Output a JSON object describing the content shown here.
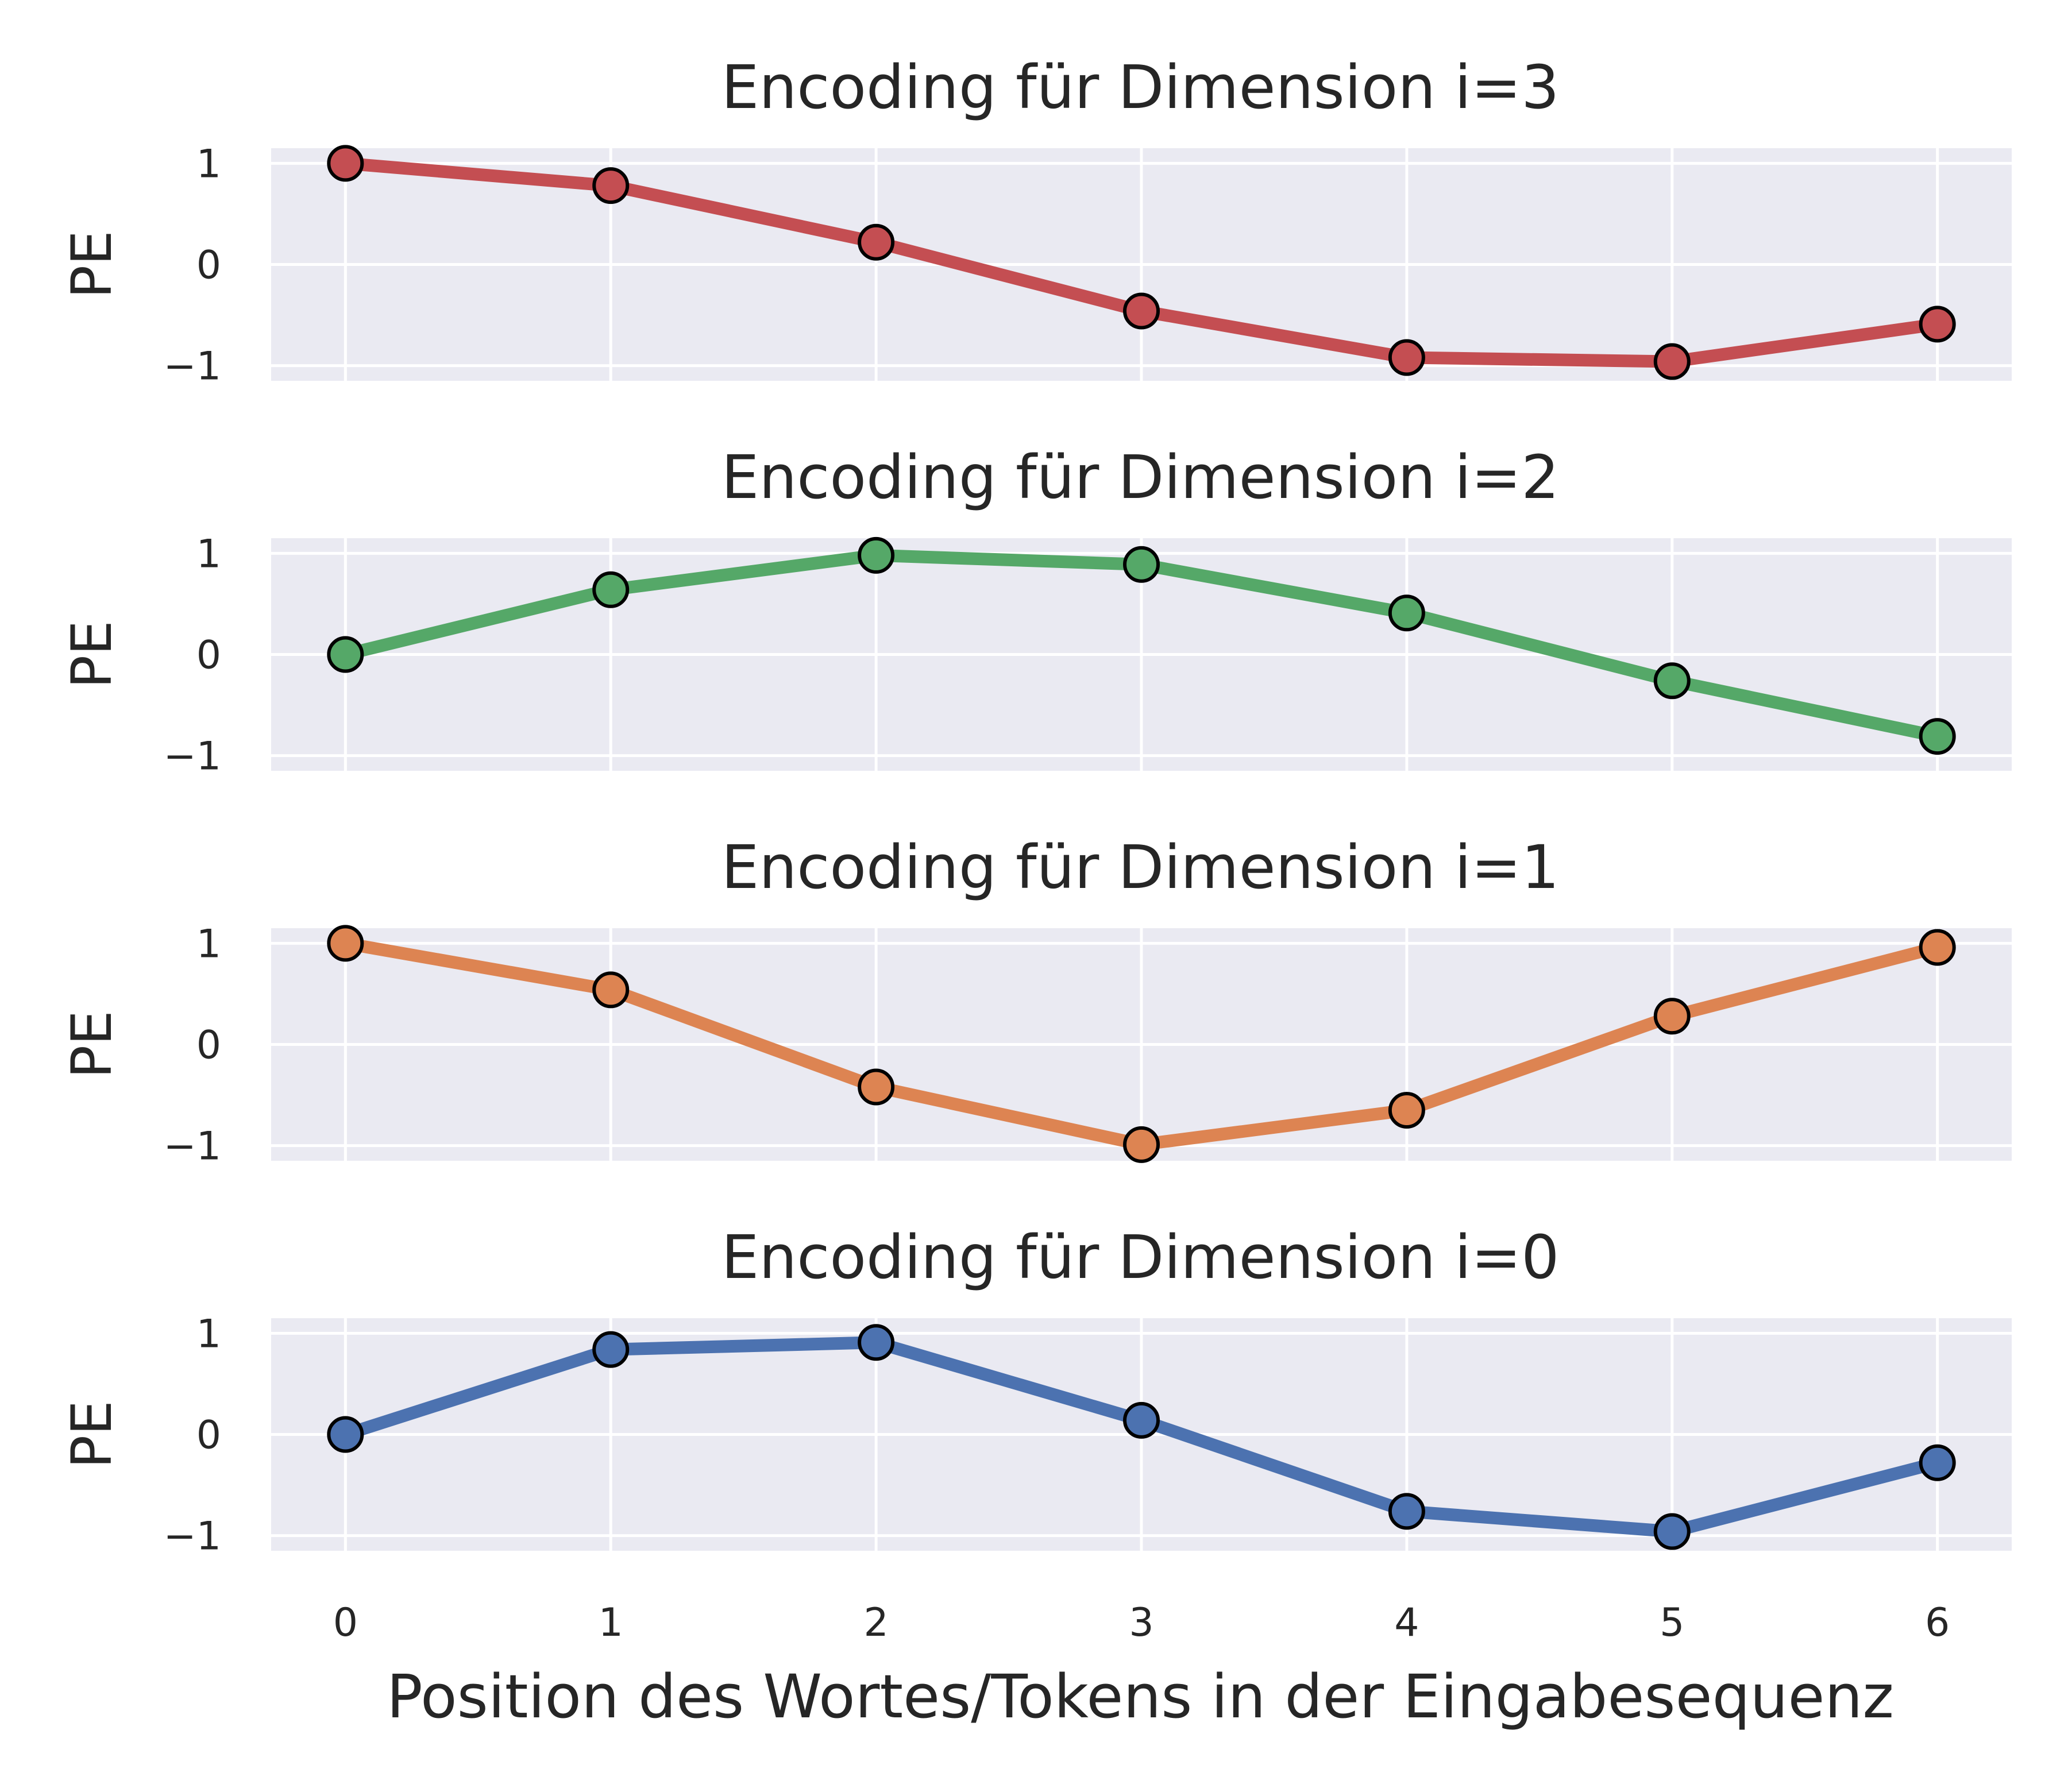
{
  "figure": {
    "xlabel": "Position des Wortes/Tokens in der Eingabesequenz"
  },
  "chart_data": [
    {
      "type": "line",
      "title": "Encoding für Dimension i=3",
      "xlabel": "",
      "ylabel": "PE",
      "x": [
        0,
        1,
        2,
        3,
        4,
        5,
        6
      ],
      "y": [
        1.0,
        0.78,
        0.22,
        -0.46,
        -0.92,
        -0.96,
        -0.59
      ],
      "color": "#c44e52",
      "xlim": [
        -0.28,
        6.28
      ],
      "ylim": [
        -1.15,
        1.15
      ],
      "yticks": [
        -1,
        0,
        1
      ],
      "ytick_labels": [
        "−1",
        "0",
        "1"
      ],
      "xticks": [
        0,
        1,
        2,
        3,
        4,
        5,
        6
      ],
      "xtick_labels": [],
      "grid": true
    },
    {
      "type": "line",
      "title": "Encoding für Dimension i=2",
      "xlabel": "",
      "ylabel": "PE",
      "x": [
        0,
        1,
        2,
        3,
        4,
        5,
        6
      ],
      "y": [
        0.0,
        0.64,
        0.98,
        0.89,
        0.41,
        -0.26,
        -0.81
      ],
      "color": "#55a868",
      "xlim": [
        -0.28,
        6.28
      ],
      "ylim": [
        -1.15,
        1.15
      ],
      "yticks": [
        -1,
        0,
        1
      ],
      "ytick_labels": [
        "−1",
        "0",
        "1"
      ],
      "xticks": [
        0,
        1,
        2,
        3,
        4,
        5,
        6
      ],
      "xtick_labels": [],
      "grid": true
    },
    {
      "type": "line",
      "title": "Encoding für Dimension i=1",
      "xlabel": "",
      "ylabel": "PE",
      "x": [
        0,
        1,
        2,
        3,
        4,
        5,
        6
      ],
      "y": [
        1.0,
        0.54,
        -0.42,
        -0.99,
        -0.65,
        0.28,
        0.96
      ],
      "color": "#dd8452",
      "xlim": [
        -0.28,
        6.28
      ],
      "ylim": [
        -1.15,
        1.15
      ],
      "yticks": [
        -1,
        0,
        1
      ],
      "ytick_labels": [
        "−1",
        "0",
        "1"
      ],
      "xticks": [
        0,
        1,
        2,
        3,
        4,
        5,
        6
      ],
      "xtick_labels": [],
      "grid": true
    },
    {
      "type": "line",
      "title": "Encoding für Dimension i=0",
      "xlabel": "Position des Wortes/Tokens in der Eingabesequenz",
      "ylabel": "PE",
      "x": [
        0,
        1,
        2,
        3,
        4,
        5,
        6
      ],
      "y": [
        0.0,
        0.84,
        0.91,
        0.14,
        -0.76,
        -0.96,
        -0.28
      ],
      "color": "#4c72b0",
      "xlim": [
        -0.28,
        6.28
      ],
      "ylim": [
        -1.15,
        1.15
      ],
      "yticks": [
        -1,
        0,
        1
      ],
      "ytick_labels": [
        "−1",
        "0",
        "1"
      ],
      "xticks": [
        0,
        1,
        2,
        3,
        4,
        5,
        6
      ],
      "xtick_labels": [
        "0",
        "1",
        "2",
        "3",
        "4",
        "5",
        "6"
      ],
      "grid": true
    }
  ],
  "style": {
    "axes_background": "#eaeaf2",
    "grid_color": "#ffffff",
    "marker_edge": "#000000",
    "text_color": "#262626"
  }
}
